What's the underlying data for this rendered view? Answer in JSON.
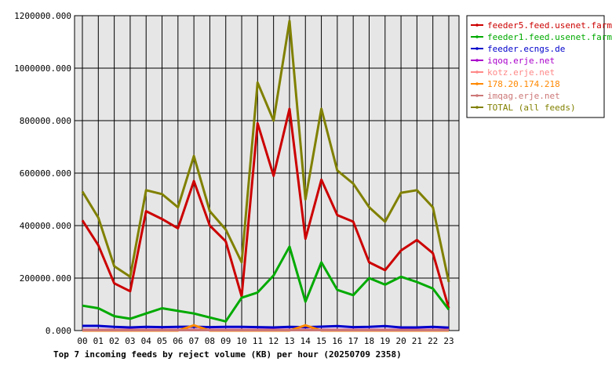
{
  "chart_data": {
    "type": "line",
    "title": "Top 7 incoming feeds by reject volume (KB) per hour (20250709 2358)",
    "xlabel": "",
    "ylabel": "",
    "categories": [
      "00",
      "01",
      "02",
      "03",
      "04",
      "05",
      "06",
      "07",
      "08",
      "09",
      "10",
      "11",
      "12",
      "13",
      "14",
      "15",
      "16",
      "17",
      "18",
      "19",
      "20",
      "21",
      "22",
      "23"
    ],
    "ylim": [
      0,
      1200000
    ],
    "y_ticks": [
      "0.000",
      "200000.000",
      "400000.000",
      "600000.000",
      "800000.000",
      "1000000.000",
      "1200000.000"
    ],
    "grid": true,
    "legend_position": "right",
    "series": [
      {
        "name": "feeder5.feed.usenet.farm",
        "color": "#cc0000",
        "values": [
          420000,
          325000,
          180000,
          150000,
          455000,
          425000,
          390000,
          570000,
          400000,
          340000,
          130000,
          790000,
          590000,
          845000,
          350000,
          575000,
          440000,
          415000,
          260000,
          230000,
          305000,
          345000,
          295000,
          85000
        ]
      },
      {
        "name": "feeder1.feed.usenet.farm",
        "color": "#00aa00",
        "values": [
          95000,
          85000,
          55000,
          45000,
          65000,
          85000,
          75000,
          65000,
          50000,
          35000,
          125000,
          145000,
          210000,
          320000,
          110000,
          260000,
          155000,
          135000,
          200000,
          175000,
          205000,
          185000,
          160000,
          80000
        ]
      },
      {
        "name": "feeder.ecngs.de",
        "color": "#0000cc",
        "values": [
          18000,
          18000,
          14000,
          12000,
          14000,
          13000,
          14000,
          15000,
          13000,
          14000,
          14000,
          13000,
          12000,
          14000,
          13000,
          15000,
          17000,
          13000,
          14000,
          17000,
          12000,
          12000,
          14000,
          11000
        ]
      },
      {
        "name": "iqoq.erje.net",
        "color": "#aa00cc",
        "values": [
          3000,
          3000,
          3000,
          3000,
          3000,
          3000,
          3000,
          3000,
          3000,
          3000,
          3000,
          3000,
          3000,
          3000,
          3000,
          3000,
          3000,
          3000,
          3000,
          3000,
          3000,
          3000,
          3000,
          3000
        ]
      },
      {
        "name": "kotz.erje.net",
        "color": "#ff8888",
        "values": [
          2000,
          2000,
          2000,
          2000,
          2000,
          2000,
          2000,
          2000,
          2000,
          2000,
          2000,
          2000,
          2000,
          2000,
          2000,
          2000,
          2000,
          2000,
          2000,
          2000,
          2000,
          2000,
          2000,
          2000
        ]
      },
      {
        "name": "178.20.174.218",
        "color": "#ff8800",
        "values": [
          0,
          0,
          0,
          0,
          0,
          0,
          0,
          20000,
          0,
          0,
          0,
          0,
          0,
          0,
          20000,
          0,
          0,
          0,
          0,
          0,
          0,
          0,
          0,
          0
        ]
      },
      {
        "name": "imqag.erje.net",
        "color": "#cc7777",
        "values": [
          1500,
          1500,
          1500,
          1500,
          1500,
          1500,
          1500,
          1500,
          1500,
          1500,
          1500,
          1500,
          1500,
          1500,
          1500,
          1500,
          1500,
          1500,
          1500,
          1500,
          1500,
          1500,
          1500,
          1500
        ]
      },
      {
        "name": "TOTAL (all feeds)",
        "color": "#808000",
        "values": [
          530000,
          430000,
          245000,
          205000,
          535000,
          520000,
          470000,
          665000,
          455000,
          385000,
          260000,
          945000,
          800000,
          1180000,
          500000,
          845000,
          610000,
          560000,
          470000,
          415000,
          525000,
          535000,
          470000,
          185000
        ]
      }
    ]
  },
  "colors": {
    "plot_background": "#e6e6e6",
    "grid": "#000000"
  }
}
